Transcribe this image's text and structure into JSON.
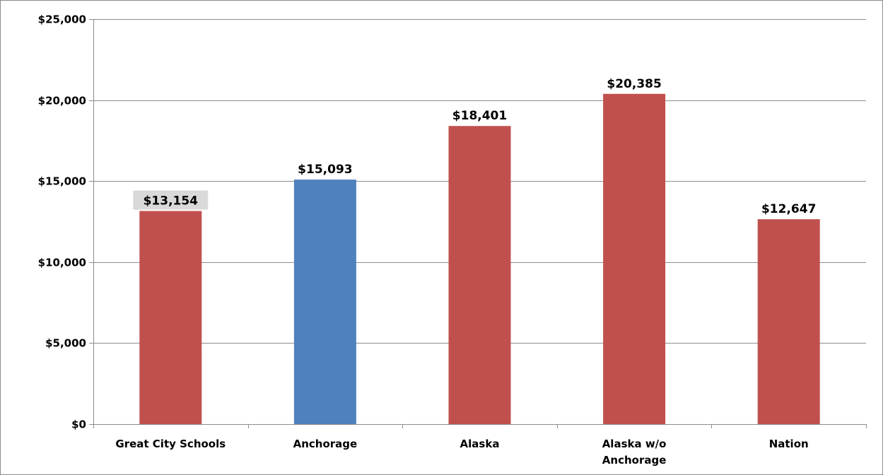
{
  "chart_data": {
    "type": "bar",
    "categories": [
      [
        "Great City Schools"
      ],
      [
        "Anchorage"
      ],
      [
        "Alaska"
      ],
      [
        "Alaska w/o",
        "Anchorage"
      ],
      [
        "Nation"
      ]
    ],
    "values": [
      13154,
      15093,
      18401,
      20385,
      12647
    ],
    "data_labels": [
      "$13,154",
      "$15,093",
      "$18,401",
      "$20,385",
      "$12,647"
    ],
    "bar_colors": [
      "#C0504D",
      "#4F81BD",
      "#C0504D",
      "#C0504D",
      "#C0504D"
    ],
    "highlighted_label_index": 0,
    "highlight_label_bg": "#D9D9D9",
    "ylim": [
      0,
      25000
    ],
    "yticks": [
      0,
      5000,
      10000,
      15000,
      20000,
      25000
    ],
    "ytick_labels": [
      "$0",
      "$5,000",
      "$10,000",
      "$15,000",
      "$20,000",
      "$25,000"
    ],
    "grid": true,
    "gridline_color": "#8C8C8C",
    "legend": "none",
    "title": "",
    "xlabel": "",
    "ylabel": ""
  }
}
